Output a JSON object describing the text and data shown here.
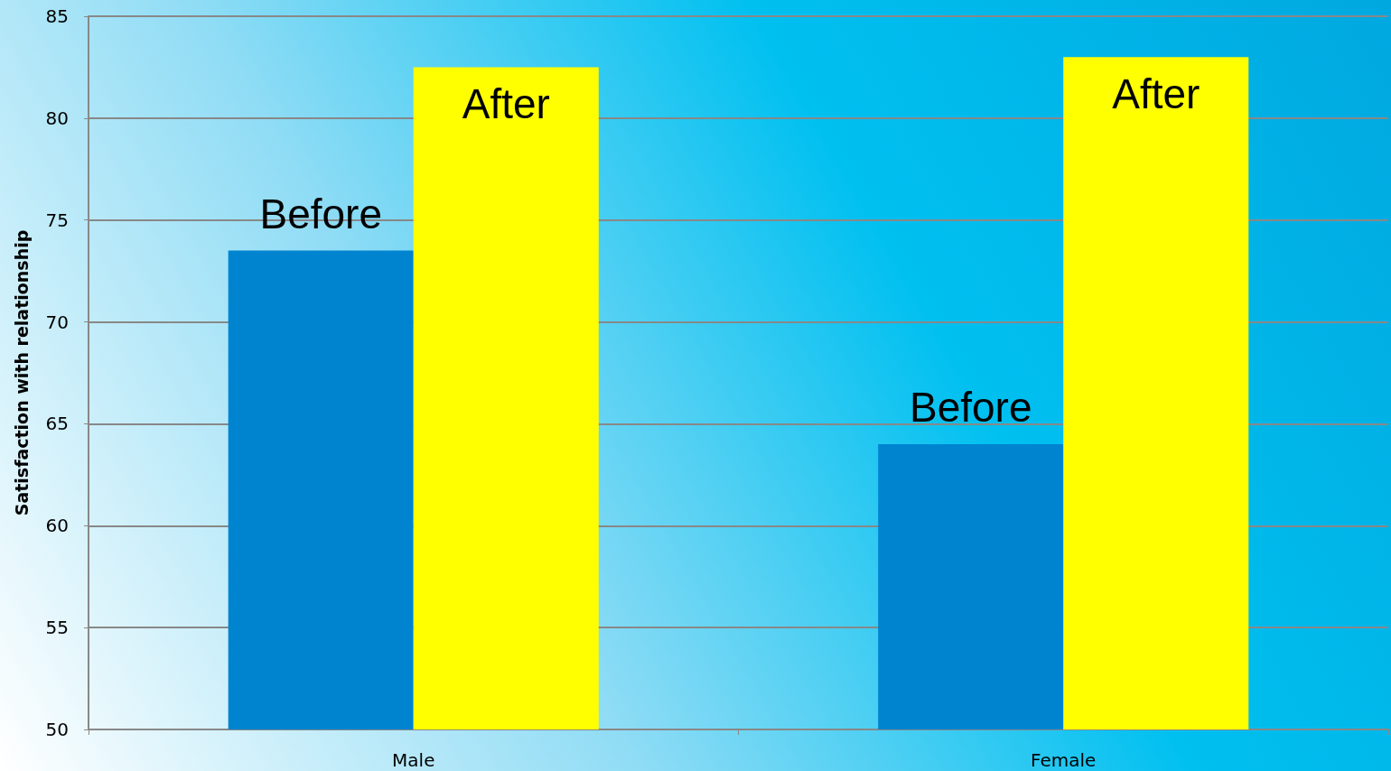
{
  "chart_data": {
    "type": "bar",
    "ylabel": "Satisfaction with relationship",
    "categories": [
      "Male",
      "Female"
    ],
    "series": [
      {
        "name": "Before",
        "color": "#0084d0",
        "values": [
          73.5,
          64
        ]
      },
      {
        "name": "After",
        "color": "#ffff00",
        "values": [
          82.5,
          83
        ]
      }
    ],
    "ylim": [
      50,
      85
    ],
    "yticks": [
      50,
      55,
      60,
      65,
      70,
      75,
      80,
      85
    ],
    "grid": "y",
    "legend": false
  }
}
